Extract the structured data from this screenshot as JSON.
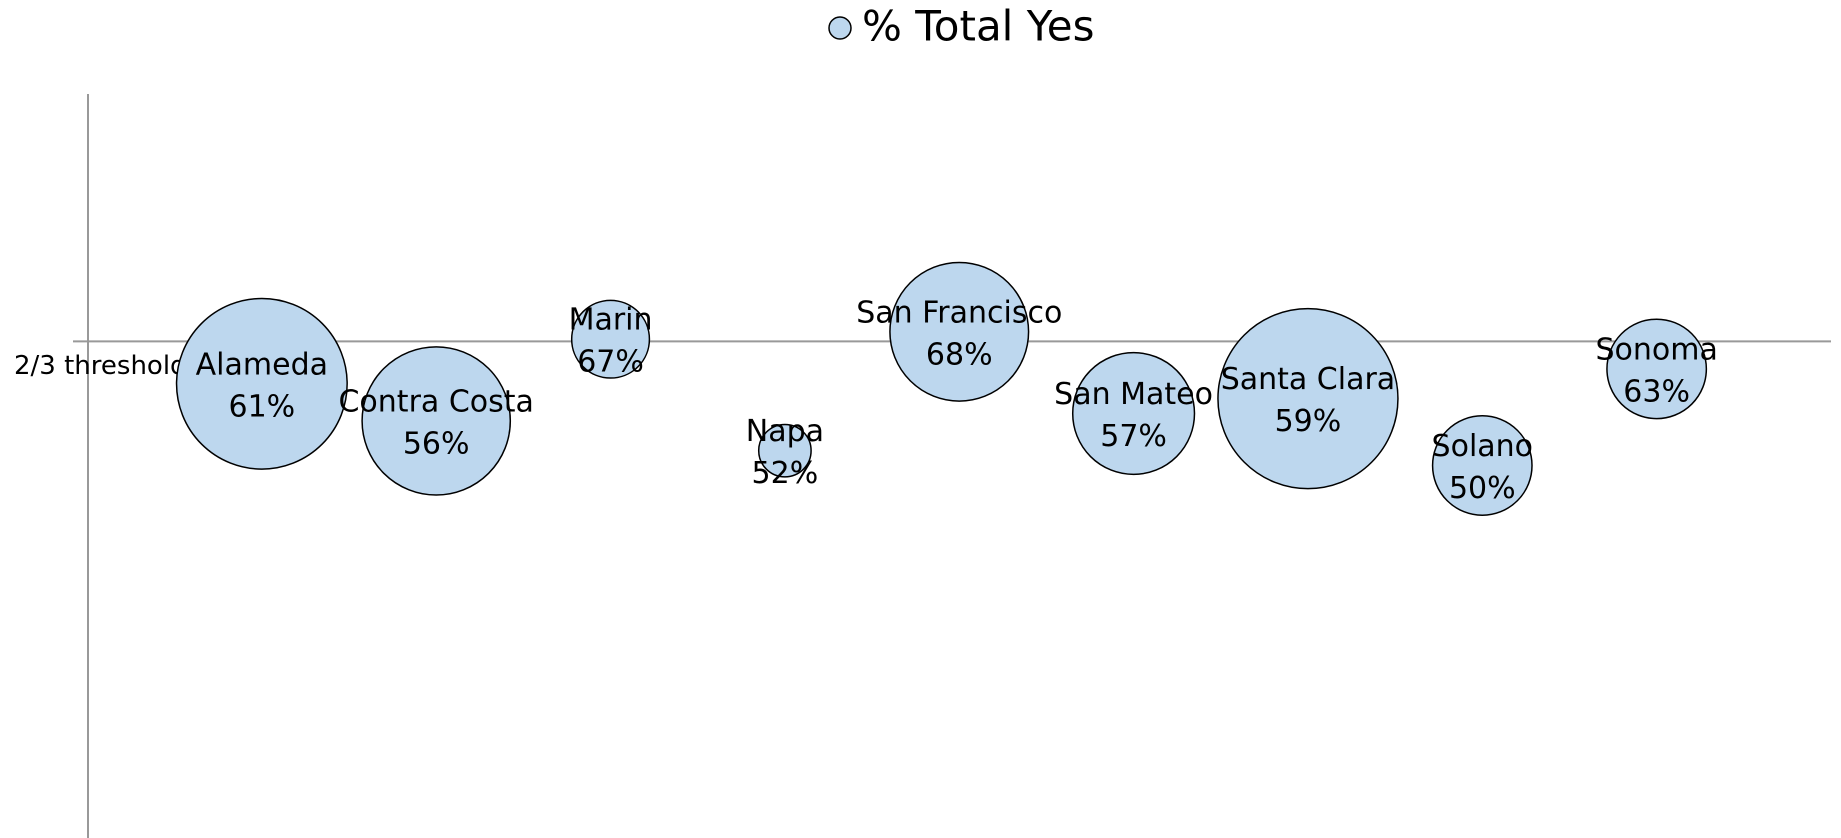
{
  "chart_data": {
    "type": "bubble",
    "legend": "% Total Yes",
    "color": "#bdd7ee",
    "categories": [
      "Alameda",
      "Contra Costa",
      "Marin",
      "Napa",
      "San Francisco",
      "San Mateo",
      "Santa Clara",
      "Solano",
      "Sonoma"
    ],
    "x": [
      1,
      2,
      3,
      4,
      5,
      6,
      7,
      8,
      9
    ],
    "values": [
      61,
      56,
      67,
      52,
      68,
      57,
      59,
      50,
      63
    ],
    "value_labels": [
      "61%",
      "56%",
      "67%",
      "52%",
      "68%",
      "57%",
      "59%",
      "50%",
      "63%"
    ],
    "sizes": [
      53,
      40,
      11,
      5,
      35,
      27,
      59,
      18,
      18
    ],
    "xlim": [
      0,
      10
    ],
    "ylim": [
      0,
      100
    ],
    "threshold": {
      "value": 66.7,
      "label": "2/3 threshold"
    }
  }
}
